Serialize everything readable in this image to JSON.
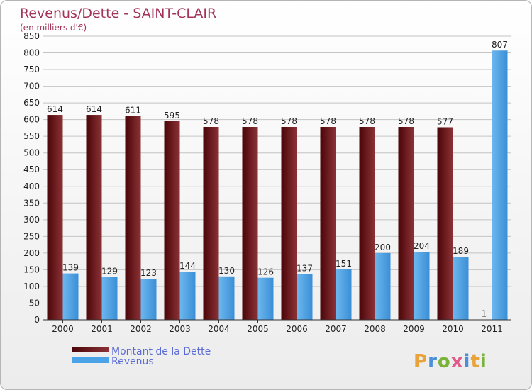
{
  "chart_data": {
    "type": "bar",
    "title": "Revenus/Dette - SAINT-CLAIR",
    "subtitle": "(en milliers d'€)",
    "categories": [
      "2000",
      "2001",
      "2002",
      "2003",
      "2004",
      "2005",
      "2006",
      "2007",
      "2008",
      "2009",
      "2010",
      "2011"
    ],
    "series": [
      {
        "name": "Montant de la Dette",
        "values": [
          614,
          614,
          611,
          595,
          578,
          578,
          578,
          578,
          578,
          578,
          577,
          1
        ]
      },
      {
        "name": "Revenus",
        "values": [
          139,
          129,
          123,
          144,
          130,
          126,
          137,
          151,
          200,
          204,
          189,
          807
        ]
      }
    ],
    "ylim": [
      0,
      850
    ],
    "ytick_step": 50,
    "grid": true,
    "legend_position": "bottom-left"
  },
  "colors": {
    "debt_dark": "#4a0508",
    "debt_light": "#8c3236",
    "rev_dark": "#3a8fd6",
    "rev_light": "#6cb7ee",
    "title": "#a2345a"
  },
  "logo": {
    "text": "Proxiti"
  }
}
